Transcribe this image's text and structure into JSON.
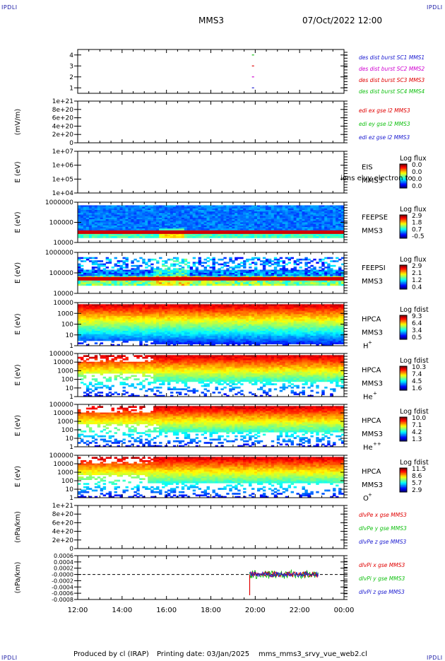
{
  "header": {
    "corner_tl": "IPDLI",
    "corner_tr": "IPDLI",
    "corner_bl": "IPDLI",
    "corner_br": "IPDLI",
    "spacecraft": "MMS3",
    "datetime": "07/Oct/2022 12:00"
  },
  "footer": {
    "produced_by": "Produced by cl (IRAP)",
    "printing_date": "Printing date: 03/Jan/2025",
    "script_name": "mms_mms3_srvy_vue_web2.cl"
  },
  "colors": {
    "blue": "#1a1ad0",
    "magenta": "#d000d0",
    "red": "#e00000",
    "green": "#10c010",
    "axis": "#000000"
  },
  "chart_data": [
    {
      "type": "scatter",
      "panel": "burst",
      "ylabel": "",
      "ylim": [
        0.5,
        4.5
      ],
      "yticks": [
        "1",
        "2",
        "3",
        "4"
      ],
      "series": [
        {
          "name": "des dist burst SC1 MMS1",
          "color": "#1a1ad0",
          "x": [
            "19:54"
          ],
          "y": [
            1
          ]
        },
        {
          "name": "des dist burst SC2 MMS2",
          "color": "#d000d0",
          "x": [
            "19:54"
          ],
          "y": [
            2
          ]
        },
        {
          "name": "des dist burst SC3 MMS3",
          "color": "#e00000",
          "x": [
            "19:54"
          ],
          "y": [
            3
          ]
        },
        {
          "name": "des dist burst SC4 MMS4",
          "color": "#10c010",
          "x": [
            "19:54"
          ],
          "y": [
            4
          ]
        }
      ]
    },
    {
      "type": "line",
      "panel": "edi",
      "ylabel": "(mV/m)",
      "ylim": [
        0,
        1e+21
      ],
      "yticks": [
        "0",
        "2e+20",
        "4e+20",
        "6e+20",
        "8e+20",
        "1e+21"
      ],
      "zero_line": true,
      "series": [
        {
          "name": "edi ex gse l2 MMS3",
          "color": "#e00000"
        },
        {
          "name": "edi ey gse l2 MMS3",
          "color": "#10c010"
        },
        {
          "name": "edi ez gse l2 MMS3",
          "color": "#1a1ad0"
        }
      ]
    },
    {
      "type": "heatmap",
      "panel": "eis",
      "ylabel": "E (eV)",
      "yscale": "log",
      "ylim": [
        10000.0,
        10000000.0
      ],
      "yticks": [
        "1e+04",
        "1e+05",
        "1e+06",
        "1e+07"
      ],
      "instrument": "EIS",
      "spacecraft": "MMS3",
      "overlay_text": "ions elvy electron to",
      "colorbar_title": "Log flux",
      "colorbar_ticks": [
        "0.0",
        "0.0",
        "0.0",
        "0.0"
      ]
    },
    {
      "type": "heatmap",
      "panel": "feepse",
      "ylabel": "E (eV)",
      "yscale": "log",
      "ylim": [
        10000,
        1000000
      ],
      "yticks": [
        "10000",
        "100000",
        "1000000"
      ],
      "instrument": "FEEPSE",
      "spacecraft": "MMS3",
      "colorbar_title": "Log flux",
      "colorbar_ticks": [
        "2.9",
        "1.8",
        "0.7",
        "-0.5"
      ]
    },
    {
      "type": "heatmap",
      "panel": "feepsi",
      "ylabel": "E (eV)",
      "yscale": "log",
      "ylim": [
        10000,
        1000000
      ],
      "yticks": [
        "10000",
        "100000",
        "1000000"
      ],
      "instrument": "FEEPSI",
      "spacecraft": "MMS3",
      "colorbar_title": "Log flux",
      "colorbar_ticks": [
        "2.9",
        "2.1",
        "1.2",
        "0.4"
      ]
    },
    {
      "type": "heatmap",
      "panel": "hpca_h",
      "ylabel": "E (eV)",
      "yscale": "log",
      "ylim": [
        1,
        10000
      ],
      "yticks": [
        "1",
        "10",
        "100",
        "1000",
        "10000"
      ],
      "instrument": "HPCA",
      "spacecraft": "MMS3",
      "species": "H",
      "charge": "+",
      "colorbar_title": "Log fdist",
      "colorbar_ticks": [
        "9.3",
        "6.4",
        "3.4",
        "0.5"
      ]
    },
    {
      "type": "heatmap",
      "panel": "hpca_he",
      "ylabel": "E (eV)",
      "yscale": "log",
      "ylim": [
        1,
        100000
      ],
      "yticks": [
        "1",
        "10",
        "100",
        "1000",
        "10000",
        "100000"
      ],
      "instrument": "HPCA",
      "spacecraft": "MMS3",
      "species": "He",
      "charge": "+",
      "colorbar_title": "Log fdist",
      "colorbar_ticks": [
        "10.3",
        "7.4",
        "4.5",
        "1.6"
      ]
    },
    {
      "type": "heatmap",
      "panel": "hpca_hepp",
      "ylabel": "E (eV)",
      "yscale": "log",
      "ylim": [
        1,
        100000
      ],
      "yticks": [
        "1",
        "10",
        "100",
        "1000",
        "10000",
        "100000"
      ],
      "instrument": "HPCA",
      "spacecraft": "MMS3",
      "species": "He",
      "charge": "++",
      "colorbar_title": "Log fdist",
      "colorbar_ticks": [
        "10.0",
        "7.1",
        "4.2",
        "1.3"
      ]
    },
    {
      "type": "heatmap",
      "panel": "hpca_o",
      "ylabel": "E (eV)",
      "yscale": "log",
      "ylim": [
        1,
        100000
      ],
      "yticks": [
        "1",
        "10",
        "100",
        "1000",
        "10000",
        "100000"
      ],
      "instrument": "HPCA",
      "spacecraft": "MMS3",
      "species": "O",
      "charge": "+",
      "colorbar_title": "Log fdist",
      "colorbar_ticks": [
        "11.5",
        "8.6",
        "5.7",
        "2.9"
      ]
    },
    {
      "type": "line",
      "panel": "dlvpe",
      "ylabel": "(nPa/km)",
      "ylim": [
        0,
        1e+21
      ],
      "yticks": [
        "0",
        "2e+20",
        "4e+20",
        "6e+20",
        "8e+20",
        "1e+21"
      ],
      "zero_line": true,
      "series": [
        {
          "name": "dlvPe x gse MMS3",
          "color": "#e00000"
        },
        {
          "name": "dlvPe y gse MMS3",
          "color": "#10c010"
        },
        {
          "name": "dlvPe z gse MMS3",
          "color": "#1a1ad0"
        }
      ]
    },
    {
      "type": "line",
      "panel": "dlvpi",
      "ylabel": "(nPa/km)",
      "ylim": [
        -0.0008,
        0.0006
      ],
      "yticks": [
        "-0.0008",
        "-0.0006",
        "-0.0004",
        "-0.0002",
        "-0.0000",
        "0.0002",
        "0.0004",
        "0.0006"
      ],
      "zero_line": true,
      "data_window": [
        "19:45",
        "22:52"
      ],
      "series": [
        {
          "name": "dlvPi x gse MMS3",
          "color": "#e00000"
        },
        {
          "name": "dlvPi y gse MMS3",
          "color": "#10c010"
        },
        {
          "name": "dlvPi z gse MMS3",
          "color": "#1a1ad0"
        }
      ]
    }
  ],
  "time_axis": {
    "range": [
      "12:00",
      "00:00"
    ],
    "ticks": [
      "12:00",
      "14:00",
      "16:00",
      "18:00",
      "20:00",
      "22:00",
      "00:00"
    ]
  }
}
